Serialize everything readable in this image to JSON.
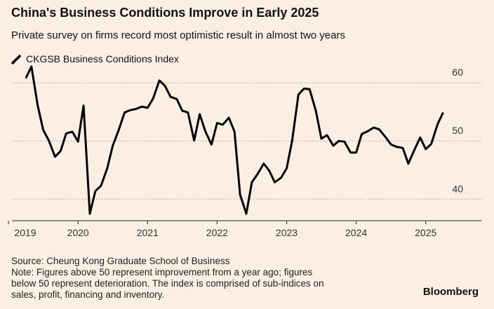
{
  "chart_data": {
    "type": "line",
    "title": "China's Business Conditions Improve in Early 2025",
    "subtitle": "Private survey on firms record most optimistic result in almost two years",
    "source": "Source: Cheung Kong Graduate School of Business",
    "notes": [
      "Note: Figures above 50 represent improvement from a year ago; figures",
      "below 50 represent deterioration. The index is comprised of sub-indices on",
      "sales, profit, financing and inventory."
    ],
    "brand": "Bloomberg",
    "x": [
      2019.25,
      2019.33,
      2019.42,
      2019.5,
      2019.58,
      2019.67,
      2019.75,
      2019.83,
      2019.92,
      2020,
      2020.08,
      2020.17,
      2020.25,
      2020.33,
      2020.42,
      2020.5,
      2020.58,
      2020.67,
      2020.75,
      2020.83,
      2020.92,
      2021,
      2021.08,
      2021.17,
      2021.25,
      2021.33,
      2021.42,
      2021.5,
      2021.58,
      2021.67,
      2021.75,
      2021.83,
      2021.92,
      2022,
      2022.08,
      2022.17,
      2022.25,
      2022.33,
      2022.42,
      2022.5,
      2022.58,
      2022.67,
      2022.75,
      2022.83,
      2022.92,
      2023,
      2023.08,
      2023.17,
      2023.25,
      2023.33,
      2023.42,
      2023.5,
      2023.58,
      2023.67,
      2023.75,
      2023.83,
      2023.92,
      2024,
      2024.08,
      2024.17,
      2024.25,
      2024.33,
      2024.42,
      2024.5,
      2024.58,
      2024.67,
      2024.75,
      2024.83,
      2024.92,
      2025,
      2025.08,
      2025.17,
      2025.25
    ],
    "series": [
      {
        "name": "CKGSB Business Conditions Index",
        "color": "#000000",
        "values": [
          60.8,
          62.8,
          56.1,
          51.9,
          50.1,
          47.3,
          48.3,
          51.3,
          51.6,
          49.9,
          56.1,
          37.5,
          41.4,
          42.3,
          45.3,
          49.2,
          51.7,
          54.9,
          55.3,
          55.5,
          55.9,
          55.7,
          57.3,
          60.4,
          59.5,
          57.6,
          57.2,
          55.2,
          54.9,
          50.1,
          54.6,
          51.7,
          49.4,
          53.1,
          52.8,
          54.0,
          51.6,
          40.8,
          37.5,
          42.9,
          44.3,
          46.1,
          44.9,
          42.9,
          43.7,
          45.3,
          50.1,
          58.0,
          59.0,
          58.9,
          55.2,
          50.4,
          51.0,
          49.2,
          50.0,
          49.9,
          48.0,
          48.0,
          51.2,
          51.7,
          52.3,
          52.0,
          50.7,
          49.4,
          49.0,
          48.8,
          46.1,
          48.3,
          50.6,
          48.6,
          49.5,
          52.9,
          54.9
        ]
      }
    ],
    "xlim": [
      2019.05,
      2025.8
    ],
    "xticks": [
      2019,
      2020,
      2021,
      2022,
      2023,
      2024,
      2025
    ],
    "ylim": [
      36.3,
      64.6
    ],
    "yticks": [
      40,
      50,
      60
    ],
    "grid": true
  }
}
